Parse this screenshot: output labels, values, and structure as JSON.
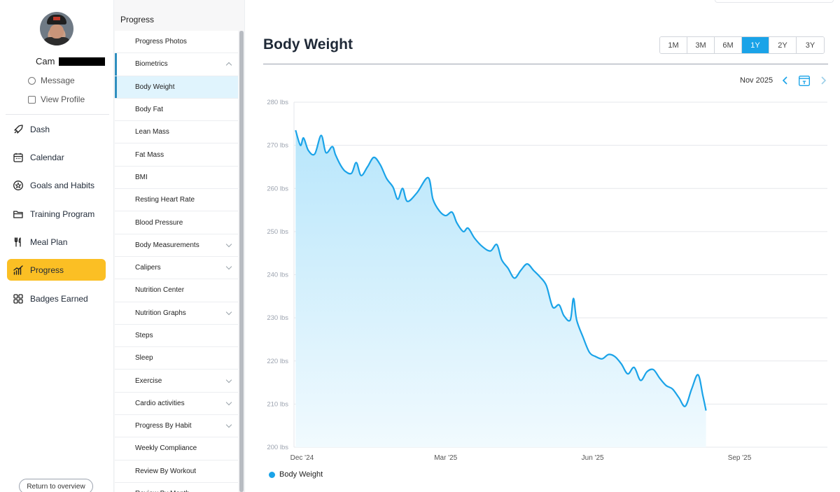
{
  "user": {
    "name": "Cam",
    "message_label": "Message",
    "view_profile_label": "View Profile"
  },
  "nav": {
    "items": [
      {
        "label": "Dash",
        "icon": "rocket-icon"
      },
      {
        "label": "Calendar",
        "icon": "calendar-icon"
      },
      {
        "label": "Goals and Habits",
        "icon": "star-badge-icon"
      },
      {
        "label": "Training Program",
        "icon": "folder-icon"
      },
      {
        "label": "Meal Plan",
        "icon": "utensils-icon"
      },
      {
        "label": "Progress",
        "icon": "bar-chart-icon",
        "active": true
      },
      {
        "label": "Badges Earned",
        "icon": "grid-icon"
      }
    ],
    "return_label": "Return to overview"
  },
  "submenu": {
    "title": "Progress",
    "items": [
      {
        "label": "Progress Photos"
      },
      {
        "label": "Biometrics",
        "chevron": "up",
        "bar": true
      },
      {
        "label": "Body Weight",
        "selected": true,
        "bar": true
      },
      {
        "label": "Body Fat"
      },
      {
        "label": "Lean Mass"
      },
      {
        "label": "Fat Mass"
      },
      {
        "label": "BMI"
      },
      {
        "label": "Resting Heart Rate"
      },
      {
        "label": "Blood Pressure"
      },
      {
        "label": "Body Measurements",
        "chevron": "down"
      },
      {
        "label": "Calipers",
        "chevron": "down"
      },
      {
        "label": "Nutrition Center"
      },
      {
        "label": "Nutrition Graphs",
        "chevron": "down"
      },
      {
        "label": "Steps"
      },
      {
        "label": "Sleep"
      },
      {
        "label": "Exercise",
        "chevron": "down"
      },
      {
        "label": "Cardio activities",
        "chevron": "down"
      },
      {
        "label": "Progress By Habit",
        "chevron": "down"
      },
      {
        "label": "Weekly Compliance"
      },
      {
        "label": "Review By Workout"
      },
      {
        "label": "Review By Month"
      }
    ]
  },
  "main": {
    "title": "Body Weight",
    "ranges": [
      "1M",
      "3M",
      "6M",
      "1Y",
      "2Y",
      "3Y"
    ],
    "active_range": "1Y",
    "period_label": "Nov 2025"
  },
  "colors": {
    "accent": "#1aa3e8",
    "nav_active": "#fbbf24"
  },
  "chart_data": {
    "type": "area",
    "title": "",
    "xlabel": "",
    "ylabel": "",
    "ylim": [
      200,
      280
    ],
    "xlim": [
      "2024-11-26",
      "2025-10-26"
    ],
    "y_ticks": [
      "280 lbs",
      "270 lbs",
      "260 lbs",
      "250 lbs",
      "240 lbs",
      "230 lbs",
      "220 lbs",
      "210 lbs",
      "200 lbs"
    ],
    "x_ticks": [
      {
        "label": "Dec '24",
        "date": "2024-12-01"
      },
      {
        "label": "Mar '25",
        "date": "2025-03-01"
      },
      {
        "label": "Jun '25",
        "date": "2025-06-01"
      },
      {
        "label": "Sep '25",
        "date": "2025-09-01"
      }
    ],
    "grid": true,
    "legend": "bottom-left",
    "series": [
      {
        "name": "Body Weight",
        "color": "#1aa3e8",
        "points": [
          [
            "2024-11-27",
            273.5
          ],
          [
            "2024-11-30",
            270.0
          ],
          [
            "2024-12-02",
            271.7
          ],
          [
            "2024-12-05",
            268.8
          ],
          [
            "2024-12-09",
            268.0
          ],
          [
            "2024-12-13",
            272.3
          ],
          [
            "2024-12-16",
            268.3
          ],
          [
            "2024-12-20",
            269.7
          ],
          [
            "2024-12-22",
            267.8
          ],
          [
            "2024-12-25",
            265.5
          ],
          [
            "2024-12-28",
            264.0
          ],
          [
            "2025-01-01",
            263.5
          ],
          [
            "2025-01-04",
            266.0
          ],
          [
            "2025-01-07",
            263.0
          ],
          [
            "2025-01-11",
            265.0
          ],
          [
            "2025-01-15",
            267.2
          ],
          [
            "2025-01-19",
            265.5
          ],
          [
            "2025-01-23",
            262.3
          ],
          [
            "2025-01-27",
            260.3
          ],
          [
            "2025-01-30",
            257.5
          ],
          [
            "2025-02-02",
            260.0
          ],
          [
            "2025-02-05",
            257.0
          ],
          [
            "2025-02-11",
            259.0
          ],
          [
            "2025-02-18",
            262.5
          ],
          [
            "2025-02-21",
            257.5
          ],
          [
            "2025-02-25",
            254.8
          ],
          [
            "2025-03-01",
            253.7
          ],
          [
            "2025-03-05",
            254.5
          ],
          [
            "2025-03-08",
            252.0
          ],
          [
            "2025-03-12",
            250.0
          ],
          [
            "2025-03-15",
            250.8
          ],
          [
            "2025-03-19",
            248.5
          ],
          [
            "2025-03-24",
            246.5
          ],
          [
            "2025-03-29",
            245.5
          ],
          [
            "2025-04-02",
            247.0
          ],
          [
            "2025-04-05",
            243.5
          ],
          [
            "2025-04-09",
            241.5
          ],
          [
            "2025-04-13",
            239.2
          ],
          [
            "2025-04-17",
            241.0
          ],
          [
            "2025-04-21",
            242.5
          ],
          [
            "2025-04-25",
            241.0
          ],
          [
            "2025-04-29",
            239.5
          ],
          [
            "2025-05-03",
            237.5
          ],
          [
            "2025-05-07",
            232.5
          ],
          [
            "2025-05-11",
            233.0
          ],
          [
            "2025-05-14",
            230.5
          ],
          [
            "2025-05-18",
            229.5
          ],
          [
            "2025-05-20",
            234.5
          ],
          [
            "2025-05-22",
            229.5
          ],
          [
            "2025-05-26",
            225.5
          ],
          [
            "2025-05-30",
            222.0
          ],
          [
            "2025-06-03",
            221.0
          ],
          [
            "2025-06-07",
            220.5
          ],
          [
            "2025-06-11",
            221.5
          ],
          [
            "2025-06-15",
            221.0
          ],
          [
            "2025-06-19",
            219.3
          ],
          [
            "2025-06-23",
            217.0
          ],
          [
            "2025-06-27",
            218.5
          ],
          [
            "2025-07-01",
            215.5
          ],
          [
            "2025-07-05",
            217.5
          ],
          [
            "2025-07-09",
            218.0
          ],
          [
            "2025-07-13",
            216.0
          ],
          [
            "2025-07-17",
            214.3
          ],
          [
            "2025-07-21",
            213.5
          ],
          [
            "2025-07-25",
            211.5
          ],
          [
            "2025-07-29",
            209.5
          ],
          [
            "2025-08-02",
            213.5
          ],
          [
            "2025-08-06",
            216.8
          ],
          [
            "2025-08-09",
            212.0
          ],
          [
            "2025-08-11",
            208.5
          ]
        ]
      }
    ]
  }
}
